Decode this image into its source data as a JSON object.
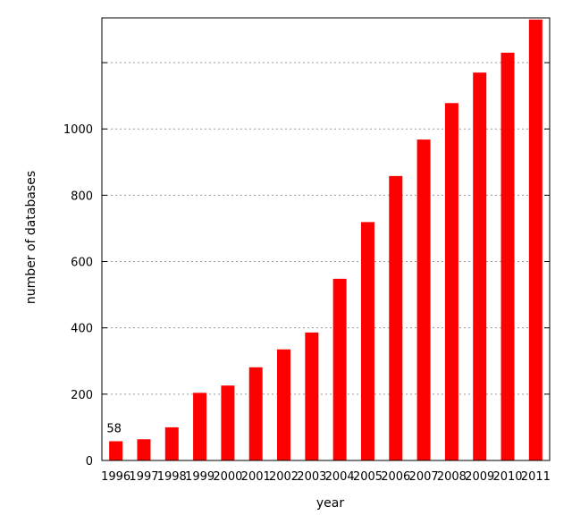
{
  "chart_data": {
    "type": "bar",
    "xlabel": "year",
    "ylabel": "number of databases",
    "categories": [
      "1996",
      "1997",
      "1998",
      "1999",
      "2000",
      "2001",
      "2002",
      "2003",
      "2004",
      "2005",
      "2006",
      "2007",
      "2008",
      "2009",
      "2010",
      "2011"
    ],
    "values": [
      58,
      64,
      100,
      204,
      226,
      281,
      335,
      386,
      548,
      719,
      858,
      968,
      1078,
      1170,
      1230,
      1330
    ],
    "ylim": [
      0,
      1335
    ],
    "yticks": [
      0,
      200,
      400,
      600,
      800,
      1000,
      1200
    ],
    "ytick_labels": [
      "0",
      "200",
      "400",
      "600",
      "800",
      "1000",
      ""
    ],
    "grid": "horizontal dotted",
    "bar_color": "#ff0000",
    "data_labels": [
      {
        "category": "1996",
        "text": "58"
      }
    ]
  }
}
